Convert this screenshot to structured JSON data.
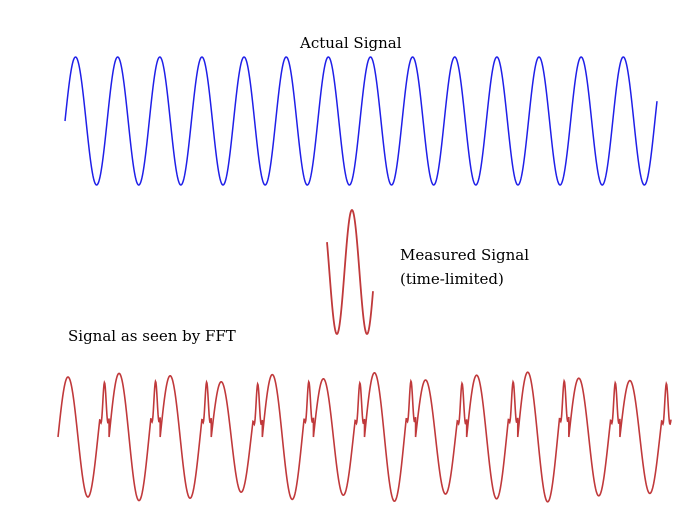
{
  "labels": {
    "actual_signal": "Actual Signal",
    "measured_signal_line1": "Measured Signal",
    "measured_signal_line2": "(time-limited)",
    "fft_signal": "Signal as seen by FFT"
  },
  "colors": {
    "actual": "#1f1fe8",
    "measured": "#c0393b",
    "fft": "#c0393b"
  },
  "waves": {
    "actual_cycles": 14,
    "fft_repeats": 12
  }
}
